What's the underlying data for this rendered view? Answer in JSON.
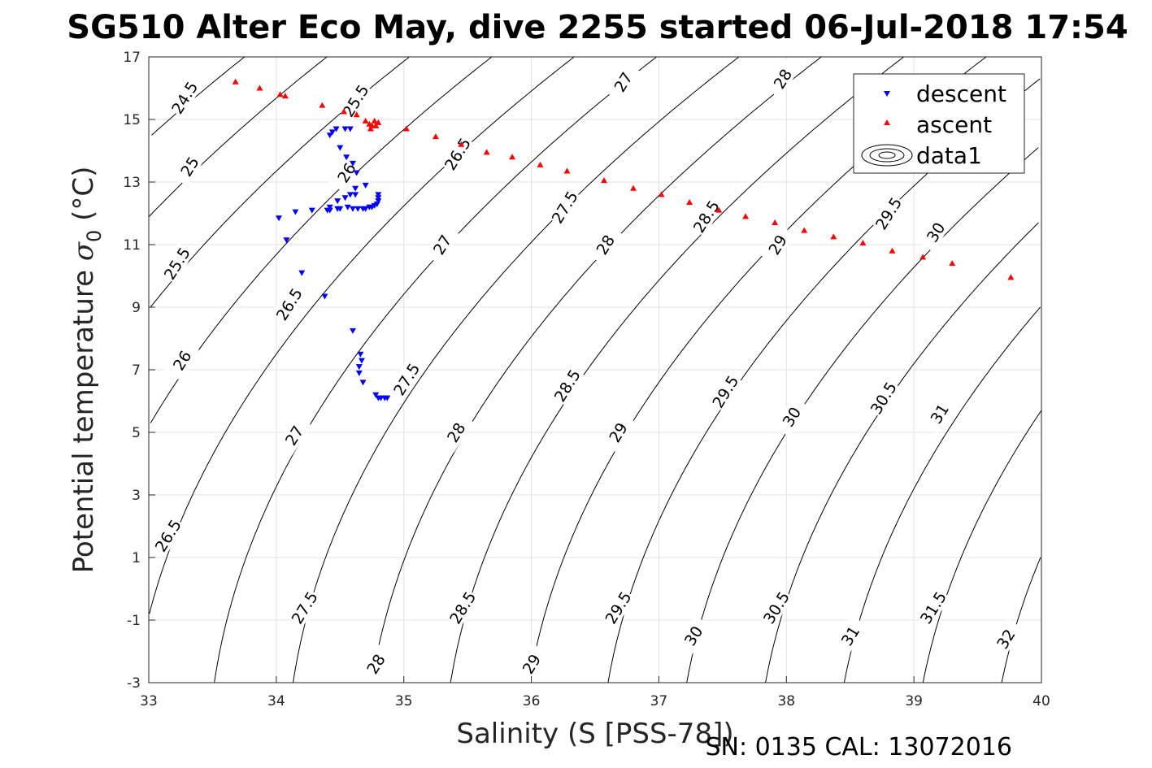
{
  "figure": {
    "title": "SG510 Alter Eco May, dive 2255 started 06-Jul-2018 17:54",
    "footer": "SN: 0135  CAL: 13072016"
  },
  "chart_data": {
    "type": "scatter",
    "title": "SG510 Alter Eco May, dive 2255 started 06-Jul-2018 17:54",
    "xlabel": "Salinity (S [PSS-78])",
    "ylabel_main": "Potential temperature ",
    "ylabel_sub": "0",
    "ylabel_unit": " (°C)",
    "xlim": [
      33,
      40
    ],
    "ylim": [
      -3,
      17
    ],
    "xticks": [
      33,
      34,
      35,
      36,
      37,
      38,
      39,
      40
    ],
    "yticks": [
      -3,
      -1,
      1,
      3,
      5,
      7,
      9,
      11,
      13,
      15,
      17
    ],
    "grid": true,
    "legend": {
      "placement": "top-right",
      "entries": [
        "descent",
        "ascent",
        "data1"
      ]
    },
    "contour_levels": [
      24.5,
      25,
      25.5,
      26,
      26.5,
      27,
      27.5,
      28,
      28.5,
      29,
      29.5,
      30,
      30.5,
      31,
      31.5,
      32
    ],
    "contour_labels": [
      {
        "text": "24.5",
        "x": 33.28,
        "y": 15.7
      },
      {
        "text": "25.5",
        "x": 34.62,
        "y": 15.6
      },
      {
        "text": "27",
        "x": 36.72,
        "y": 16.2
      },
      {
        "text": "28",
        "x": 37.97,
        "y": 16.3
      },
      {
        "text": "25",
        "x": 33.32,
        "y": 13.5
      },
      {
        "text": "26",
        "x": 34.55,
        "y": 13.3
      },
      {
        "text": "26.5",
        "x": 35.42,
        "y": 13.9
      },
      {
        "text": "25.5",
        "x": 33.22,
        "y": 10.4
      },
      {
        "text": "27.5",
        "x": 36.26,
        "y": 12.2
      },
      {
        "text": "28.5",
        "x": 37.37,
        "y": 11.9
      },
      {
        "text": "29.5",
        "x": 38.8,
        "y": 12.0
      },
      {
        "text": "27",
        "x": 35.3,
        "y": 11.0
      },
      {
        "text": "28",
        "x": 36.58,
        "y": 11.0
      },
      {
        "text": "29",
        "x": 37.93,
        "y": 11.0
      },
      {
        "text": "30",
        "x": 39.17,
        "y": 11.4
      },
      {
        "text": "26.5",
        "x": 34.1,
        "y": 9.1
      },
      {
        "text": "26",
        "x": 33.26,
        "y": 7.3
      },
      {
        "text": "27.5",
        "x": 35.02,
        "y": 6.7
      },
      {
        "text": "28.5",
        "x": 36.28,
        "y": 6.5
      },
      {
        "text": "29.5",
        "x": 37.52,
        "y": 6.3
      },
      {
        "text": "30.5",
        "x": 38.76,
        "y": 6.1
      },
      {
        "text": "30",
        "x": 38.04,
        "y": 5.5
      },
      {
        "text": "31",
        "x": 39.2,
        "y": 5.6
      },
      {
        "text": "27",
        "x": 34.14,
        "y": 4.9
      },
      {
        "text": "28",
        "x": 35.41,
        "y": 5.0
      },
      {
        "text": "29",
        "x": 36.68,
        "y": 5.0
      },
      {
        "text": "26.5",
        "x": 33.15,
        "y": 1.7
      },
      {
        "text": "27.5",
        "x": 34.22,
        "y": -0.6
      },
      {
        "text": "28.5",
        "x": 35.46,
        "y": -0.6
      },
      {
        "text": "29.5",
        "x": 36.68,
        "y": -0.6
      },
      {
        "text": "30.5",
        "x": 37.92,
        "y": -0.6
      },
      {
        "text": "31.5",
        "x": 39.15,
        "y": -0.6
      },
      {
        "text": "30",
        "x": 37.27,
        "y": -1.5
      },
      {
        "text": "31",
        "x": 38.5,
        "y": -1.5
      },
      {
        "text": "32",
        "x": 39.72,
        "y": -1.6
      },
      {
        "text": "28",
        "x": 34.78,
        "y": -2.4
      },
      {
        "text": "29",
        "x": 36.0,
        "y": -2.4
      }
    ],
    "series": [
      {
        "name": "descent",
        "color": "#0000ff",
        "marker": "triangle-down",
        "points": [
          [
            34.44,
            14.6
          ],
          [
            34.47,
            14.7
          ],
          [
            34.54,
            14.7
          ],
          [
            34.58,
            14.7
          ],
          [
            34.42,
            14.5
          ],
          [
            34.5,
            14.1
          ],
          [
            34.55,
            13.8
          ],
          [
            34.6,
            13.6
          ],
          [
            34.63,
            13.3
          ],
          [
            34.7,
            12.9
          ],
          [
            34.62,
            12.6
          ],
          [
            34.56,
            12.2
          ],
          [
            34.48,
            12.15
          ],
          [
            34.42,
            12.1
          ],
          [
            34.4,
            12.1
          ],
          [
            34.42,
            12.2
          ],
          [
            34.48,
            12.4
          ],
          [
            34.54,
            12.5
          ],
          [
            34.58,
            12.6
          ],
          [
            34.62,
            12.8
          ],
          [
            34.5,
            12.15
          ],
          [
            34.6,
            12.15
          ],
          [
            34.64,
            12.15
          ],
          [
            34.68,
            12.15
          ],
          [
            34.7,
            12.15
          ],
          [
            34.73,
            12.2
          ],
          [
            34.75,
            12.2
          ],
          [
            34.77,
            12.25
          ],
          [
            34.79,
            12.3
          ],
          [
            34.8,
            12.4
          ],
          [
            34.8,
            12.5
          ],
          [
            34.8,
            12.6
          ],
          [
            34.28,
            12.1
          ],
          [
            34.15,
            12.05
          ],
          [
            34.02,
            11.85
          ],
          [
            34.08,
            11.15
          ],
          [
            34.2,
            10.1
          ],
          [
            34.38,
            9.35
          ],
          [
            34.6,
            8.25
          ],
          [
            34.66,
            7.5
          ],
          [
            34.67,
            7.3
          ],
          [
            34.65,
            7.1
          ],
          [
            34.65,
            6.9
          ],
          [
            34.68,
            6.6
          ],
          [
            34.78,
            6.2
          ],
          [
            34.8,
            6.1
          ],
          [
            34.82,
            6.1
          ],
          [
            34.85,
            6.1
          ],
          [
            34.87,
            6.1
          ]
        ]
      },
      {
        "name": "ascent",
        "color": "#ff0000",
        "marker": "triangle-up",
        "points": [
          [
            33.68,
            16.2
          ],
          [
            33.87,
            16.0
          ],
          [
            34.03,
            15.8
          ],
          [
            34.07,
            15.75
          ],
          [
            34.36,
            15.45
          ],
          [
            34.53,
            15.25
          ],
          [
            34.63,
            15.15
          ],
          [
            34.7,
            14.95
          ],
          [
            34.73,
            14.85
          ],
          [
            34.75,
            14.8
          ],
          [
            34.78,
            14.8
          ],
          [
            34.8,
            14.9
          ],
          [
            34.77,
            14.95
          ],
          [
            34.74,
            14.7
          ],
          [
            34.78,
            14.8
          ],
          [
            35.02,
            14.7
          ],
          [
            35.25,
            14.45
          ],
          [
            35.45,
            14.2
          ],
          [
            35.65,
            13.95
          ],
          [
            35.85,
            13.8
          ],
          [
            36.07,
            13.55
          ],
          [
            36.28,
            13.35
          ],
          [
            36.57,
            13.05
          ],
          [
            36.8,
            12.8
          ],
          [
            37.02,
            12.6
          ],
          [
            37.24,
            12.35
          ],
          [
            37.47,
            12.1
          ],
          [
            37.68,
            11.9
          ],
          [
            37.91,
            11.7
          ],
          [
            38.14,
            11.45
          ],
          [
            38.37,
            11.25
          ],
          [
            38.6,
            11.05
          ],
          [
            38.83,
            10.8
          ],
          [
            39.07,
            10.6
          ],
          [
            39.3,
            10.4
          ],
          [
            39.76,
            9.95
          ]
        ]
      }
    ]
  }
}
